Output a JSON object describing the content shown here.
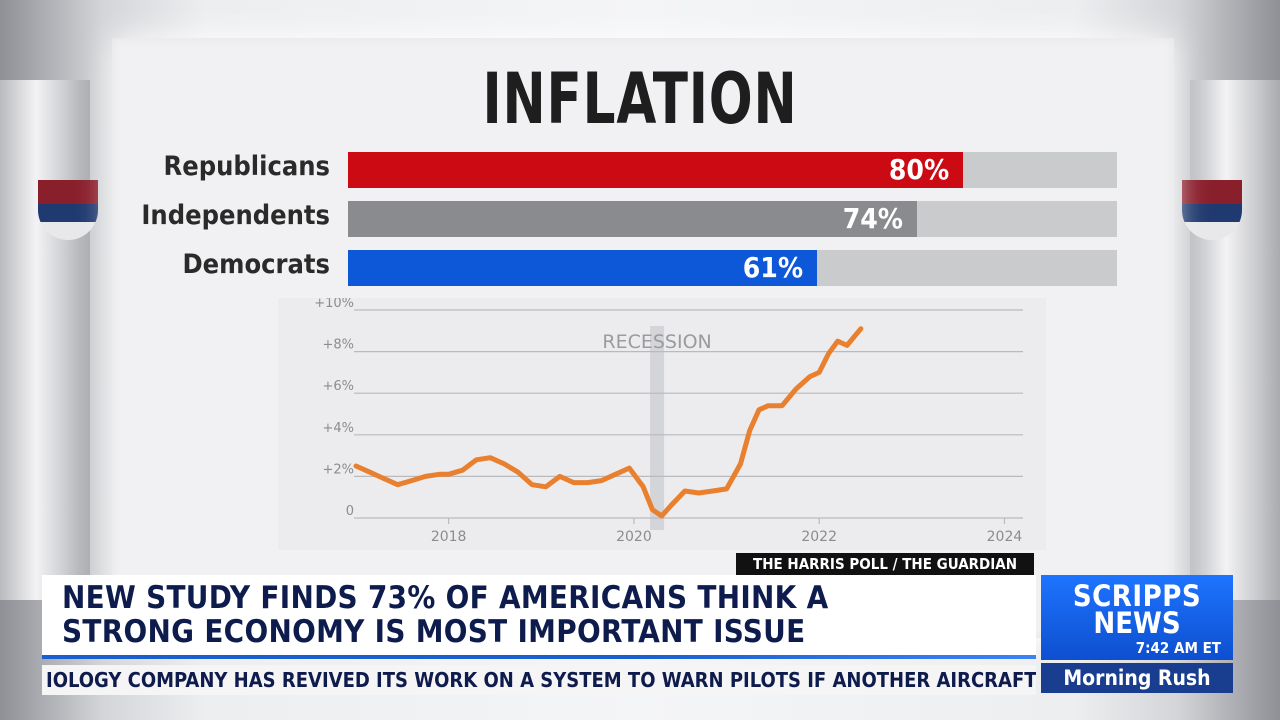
{
  "graphic": {
    "title": "INFLATION",
    "source": "THE HARRIS POLL / THE GUARDIAN"
  },
  "poll": {
    "rows": [
      {
        "label": "Republicans",
        "value": 80,
        "value_label": "80%",
        "color": "#cc0a14"
      },
      {
        "label": "Independents",
        "value": 74,
        "value_label": "74%",
        "color": "#8a8b8e"
      },
      {
        "label": "Democrats",
        "value": 61,
        "value_label": "61%",
        "color": "#0d57d9"
      }
    ],
    "max": 100
  },
  "chart_data": {
    "type": "line",
    "title": "",
    "xlabel": "",
    "ylabel": "",
    "annotation": "RECESSION",
    "recession_x": 2020.25,
    "xlim": [
      2017.0,
      2024.2
    ],
    "ylim": [
      0,
      10
    ],
    "xticks": [
      2018,
      2020,
      2022,
      2024
    ],
    "xtick_labels": [
      "2018",
      "2020",
      "2022",
      "2024"
    ],
    "yticks": [
      0,
      2,
      4,
      6,
      8,
      10
    ],
    "ytick_labels": [
      "0",
      "+2%",
      "+4%",
      "+6%",
      "+8%",
      "+10%"
    ],
    "line_color": "#e8802f",
    "series": [
      {
        "x": [
          2017.0,
          2017.15,
          2017.3,
          2017.45,
          2017.6,
          2017.75,
          2017.9,
          2018.0,
          2018.15,
          2018.3,
          2018.45,
          2018.6,
          2018.75,
          2018.9,
          2019.05,
          2019.2,
          2019.35,
          2019.5,
          2019.65,
          2019.8,
          2019.95,
          2020.1,
          2020.2,
          2020.3,
          2020.4,
          2020.55,
          2020.7,
          2020.85,
          2021.0,
          2021.15,
          2021.25,
          2021.35,
          2021.45,
          2021.6,
          2021.75,
          2021.9,
          2022.0,
          2022.1,
          2022.2,
          2022.3,
          2022.45
        ],
        "y": [
          2.5,
          2.2,
          1.9,
          1.6,
          1.8,
          2.0,
          2.1,
          2.1,
          2.3,
          2.8,
          2.9,
          2.6,
          2.2,
          1.6,
          1.5,
          2.0,
          1.7,
          1.7,
          1.8,
          2.1,
          2.4,
          1.5,
          0.4,
          0.1,
          0.6,
          1.3,
          1.2,
          1.3,
          1.4,
          2.6,
          4.2,
          5.2,
          5.4,
          5.4,
          6.2,
          6.8,
          7.0,
          7.9,
          8.5,
          8.3,
          9.1
        ]
      }
    ]
  },
  "lower_third": {
    "headline_line1": "NEW STUDY FINDS 73% OF AMERICANS THINK A",
    "headline_line2": "STRONG ECONOMY IS MOST IMPORTANT ISSUE",
    "ticker": "IOLOGY COMPANY HAS REVIVED ITS WORK ON A SYSTEM TO WARN PILOTS IF ANOTHER AIRCRAFT MIGHT BE"
  },
  "network": {
    "logo_line1": "SCRIPPS",
    "logo_line2": "NEWS",
    "time": "7:42 AM ET",
    "show_name": "Morning Rush"
  }
}
